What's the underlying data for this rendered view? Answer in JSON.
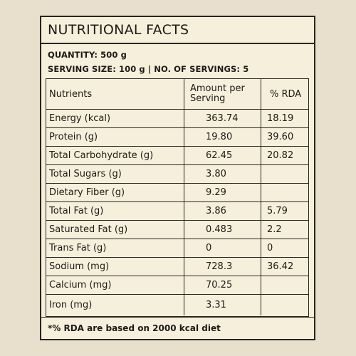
{
  "label": {
    "title": "NUTRITIONAL FACTS",
    "quantity_line": "QUANTITY: 500 g",
    "serving_line": "SERVING SIZE: 100 g | NO. OF SERVINGS: 5",
    "headers": {
      "nutrients": "Nutrients",
      "amount": "Amount per Serving",
      "rda": "% RDA"
    },
    "rows": [
      {
        "name": "Energy (kcal)",
        "amount": "363.74",
        "rda": "18.19"
      },
      {
        "name": "Protein (g)",
        "amount": "19.80",
        "rda": "39.60"
      },
      {
        "name": "Total Carbohydrate (g)",
        "amount": "62.45",
        "rda": "20.82"
      },
      {
        "name": "Total Sugars (g)",
        "amount": "3.80",
        "rda": ""
      },
      {
        "name": "Dietary Fiber (g)",
        "amount": "9.29",
        "rda": ""
      },
      {
        "name": "Total Fat (g)",
        "amount": "3.86",
        "rda": "5.79"
      },
      {
        "name": "Saturated Fat (g)",
        "amount": "0.483",
        "rda": "2.2"
      },
      {
        "name": "Trans Fat (g)",
        "amount": "0",
        "rda": "0"
      },
      {
        "name": "Sodium (mg)",
        "amount": "728.3",
        "rda": "36.42"
      },
      {
        "name": "Calcium (mg)",
        "amount": "70.25",
        "rda": ""
      },
      {
        "name": "Iron (mg)",
        "amount": "3.31",
        "rda": ""
      }
    ],
    "footnote": "*% RDA are based on 2000 kcal diet"
  }
}
